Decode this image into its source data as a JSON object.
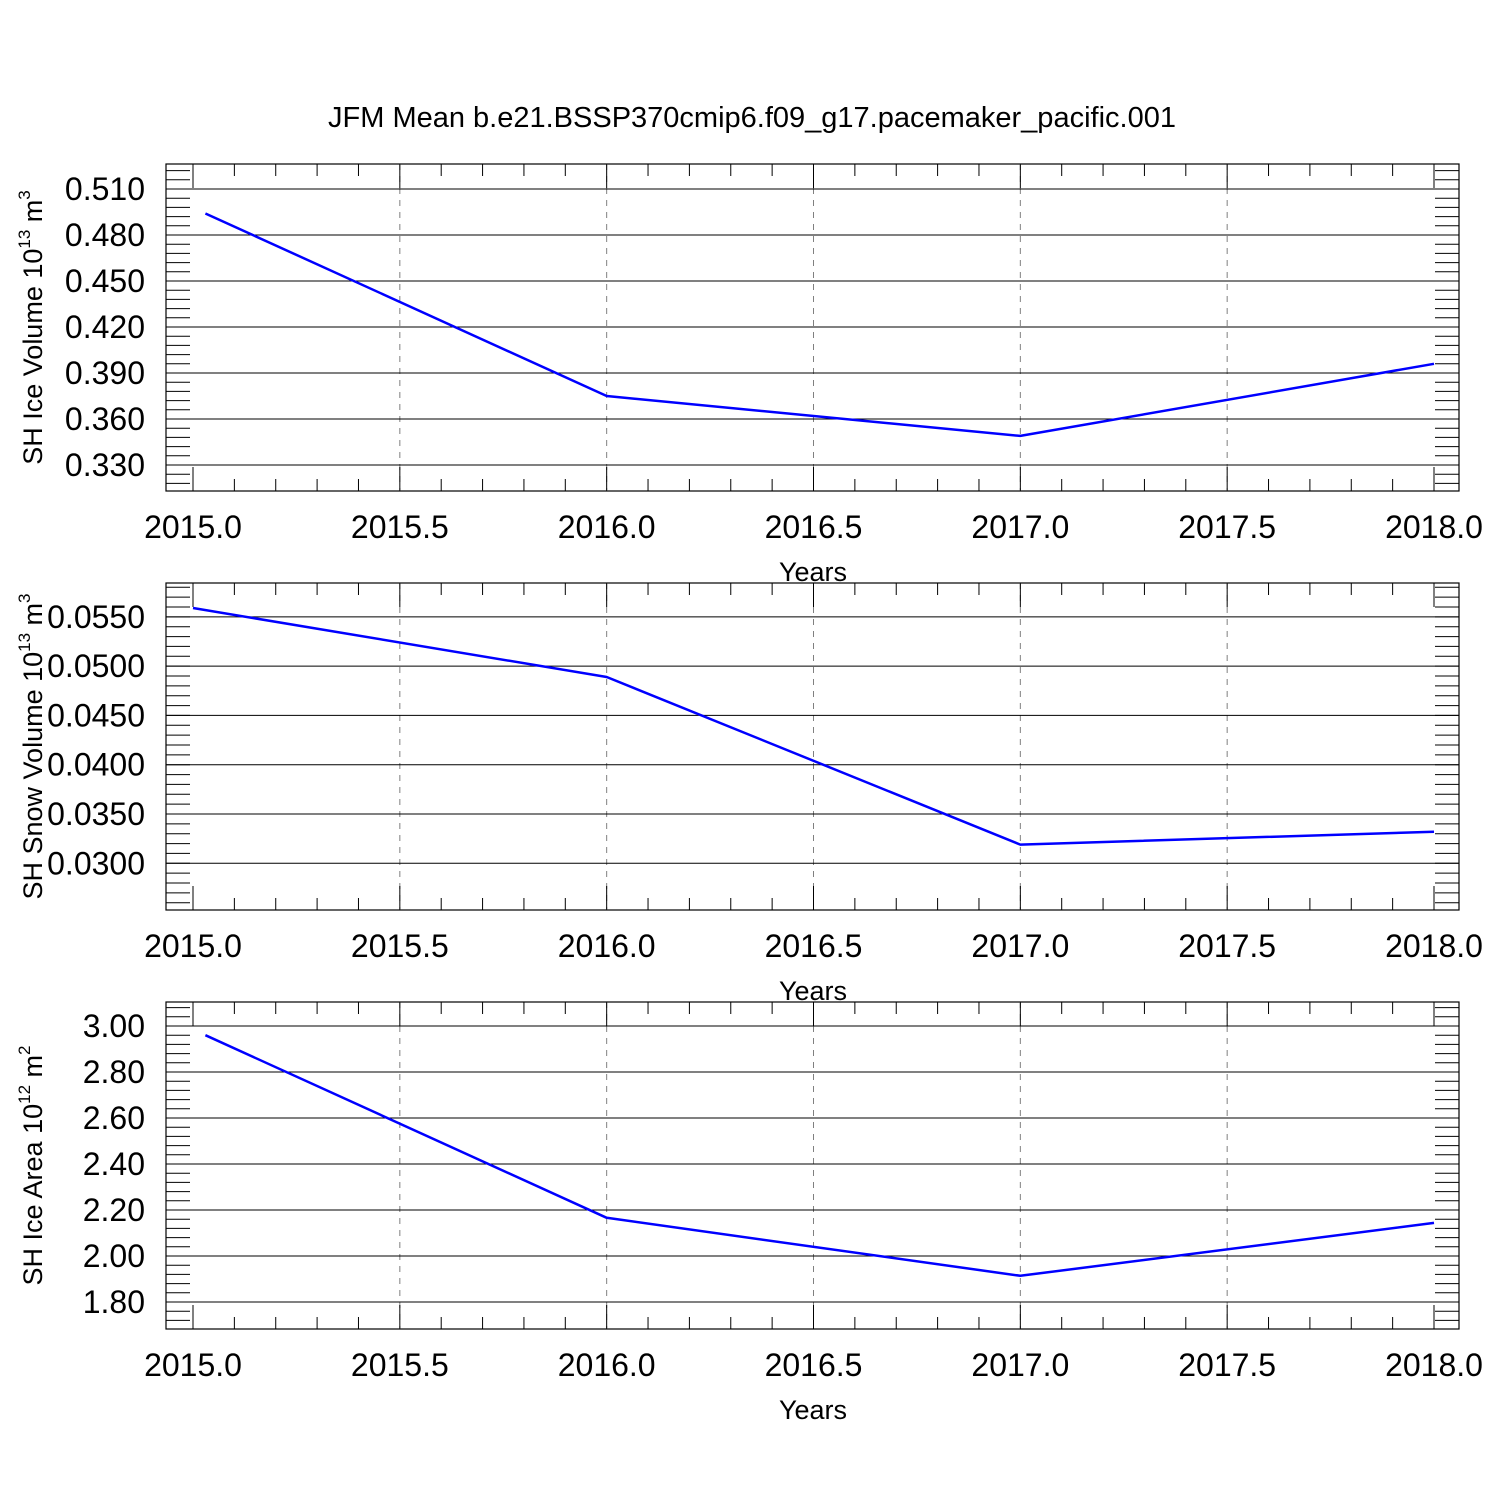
{
  "figure_title": "JFM Mean b.e21.BSSP370cmip6.f09_g17.pacemaker_pacific.001",
  "chart_data": [
    {
      "type": "line",
      "xlabel": "Years",
      "ylabel": "SH Ice Volume 10",
      "ylabel_sup": "13",
      "ylabel_unit": "m",
      "ylabel_unit_sup": "3",
      "xlim": [
        2015.0,
        2018.0
      ],
      "ylim": [
        0.33,
        0.51
      ],
      "xticks": [
        2015.0,
        2015.5,
        2016.0,
        2016.5,
        2017.0,
        2017.5,
        2018.0
      ],
      "xtick_labels": [
        "2015.0",
        "2015.5",
        "2016.0",
        "2016.5",
        "2017.0",
        "2017.5",
        "2018.0"
      ],
      "yticks": [
        0.33,
        0.36,
        0.39,
        0.42,
        0.45,
        0.48,
        0.51
      ],
      "ytick_labels": [
        "0.330",
        "0.360",
        "0.390",
        "0.420",
        "0.450",
        "0.480",
        "0.510"
      ],
      "minor_x_step": 0.1,
      "minor_y_step": 0.006,
      "grid": "vertical-dashed",
      "series": [
        {
          "x": [
            2015.03,
            2016.0,
            2017.0,
            2018.0
          ],
          "y": [
            0.494,
            0.375,
            0.349,
            0.396
          ],
          "color": "#0000ff"
        }
      ]
    },
    {
      "type": "line",
      "xlabel": "Years",
      "ylabel": "SH Snow Volume 10",
      "ylabel_sup": "13",
      "ylabel_unit": "m",
      "ylabel_unit_sup": "3",
      "xlim": [
        2015.0,
        2018.0
      ],
      "ylim": [
        0.028,
        0.056
      ],
      "xticks": [
        2015.0,
        2015.5,
        2016.0,
        2016.5,
        2017.0,
        2017.5,
        2018.0
      ],
      "xtick_labels": [
        "2015.0",
        "2015.5",
        "2016.0",
        "2016.5",
        "2017.0",
        "2017.5",
        "2018.0"
      ],
      "yticks": [
        0.03,
        0.035,
        0.04,
        0.045,
        0.05,
        0.055
      ],
      "ytick_labels": [
        "0.0300",
        "0.0350",
        "0.0400",
        "0.0450",
        "0.0500",
        "0.0550"
      ],
      "minor_x_step": 0.1,
      "minor_y_step": 0.001,
      "grid": "vertical-dashed",
      "series": [
        {
          "x": [
            2015.0,
            2016.0,
            2017.0,
            2018.0
          ],
          "y": [
            0.0559,
            0.0489,
            0.0319,
            0.0332
          ],
          "color": "#0000ff"
        }
      ]
    },
    {
      "type": "line",
      "xlabel": "Years",
      "ylabel": "SH Ice Area 10",
      "ylabel_sup": "12",
      "ylabel_unit": "m",
      "ylabel_unit_sup": "2",
      "xlim": [
        2015.0,
        2018.0
      ],
      "ylim": [
        1.8,
        3.0
      ],
      "xticks": [
        2015.0,
        2015.5,
        2016.0,
        2016.5,
        2017.0,
        2017.5,
        2018.0
      ],
      "xtick_labels": [
        "2015.0",
        "2015.5",
        "2016.0",
        "2016.5",
        "2017.0",
        "2017.5",
        "2018.0"
      ],
      "yticks": [
        1.8,
        2.0,
        2.2,
        2.4,
        2.6,
        2.8,
        3.0
      ],
      "ytick_labels": [
        "1.80",
        "2.00",
        "2.20",
        "2.40",
        "2.60",
        "2.80",
        "3.00"
      ],
      "minor_x_step": 0.1,
      "minor_y_step": 0.04,
      "grid": "vertical-dashed",
      "series": [
        {
          "x": [
            2015.03,
            2016.0,
            2017.0,
            2018.0
          ],
          "y": [
            2.96,
            2.166,
            1.914,
            2.144
          ],
          "color": "#0000ff"
        }
      ]
    }
  ]
}
